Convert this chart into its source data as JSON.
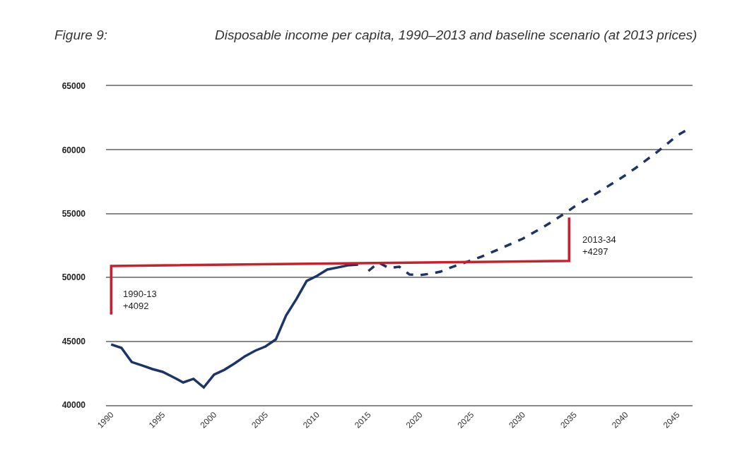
{
  "chart_data": {
    "type": "line",
    "title": "Figure 9:",
    "subtitle": "Disposable income per capita, 1990–2013 and baseline scenario (at 2013 prices)",
    "xlim": [
      1989.5,
      2046.5
    ],
    "xticks": [
      1990,
      1995,
      2000,
      2005,
      2010,
      2015,
      2020,
      2025,
      2030,
      2035,
      2040,
      2045
    ],
    "ylim": [
      40000,
      65000
    ],
    "yticks": [
      40000,
      45000,
      50000,
      55000,
      60000,
      65000
    ],
    "grid": "y",
    "series": [
      {
        "color": "#1c3466",
        "line_style": "solid",
        "x": [
          1990,
          1991,
          1992,
          1993,
          1994,
          1995,
          1996,
          1997,
          1998,
          1999,
          2000,
          2001,
          2002,
          2003,
          2004,
          2005,
          2006,
          2007,
          2008,
          2009,
          2010,
          2011,
          2012,
          2013,
          2014
        ],
        "values": [
          44750,
          44480,
          43370,
          43100,
          42820,
          42600,
          42200,
          41770,
          42050,
          41380,
          42380,
          42760,
          43260,
          43820,
          44260,
          44590,
          45140,
          47020,
          48300,
          49730,
          50120,
          50620,
          50780,
          50950,
          51000
        ]
      },
      {
        "color": "#1c3466",
        "line_style": "dashed",
        "x": [
          2015,
          2016,
          2017,
          2018,
          2019,
          2020,
          2021,
          2022,
          2023,
          2024,
          2025,
          2026,
          2027,
          2028,
          2029,
          2030,
          2031,
          2032,
          2033,
          2034,
          2035,
          2036,
          2037,
          2038,
          2039,
          2040,
          2041,
          2042,
          2043,
          2044,
          2045,
          2046
        ],
        "values": [
          50510,
          51170,
          50730,
          50840,
          50230,
          50180,
          50290,
          50450,
          50780,
          51060,
          51340,
          51640,
          51980,
          52330,
          52680,
          53040,
          53500,
          53960,
          54450,
          54980,
          55540,
          56020,
          56510,
          57010,
          57510,
          58030,
          58600,
          59200,
          59800,
          60450,
          61120,
          61600
        ]
      },
      {
        "color": "#c8202c",
        "line_style": "solid",
        "x": [
          1990,
          1990,
          2034.5,
          2034.5
        ],
        "values": [
          47100,
          50900,
          51300,
          54700
        ]
      }
    ],
    "annotations": [
      "1990-13\n+4092",
      "2013-34\n+4297"
    ]
  }
}
